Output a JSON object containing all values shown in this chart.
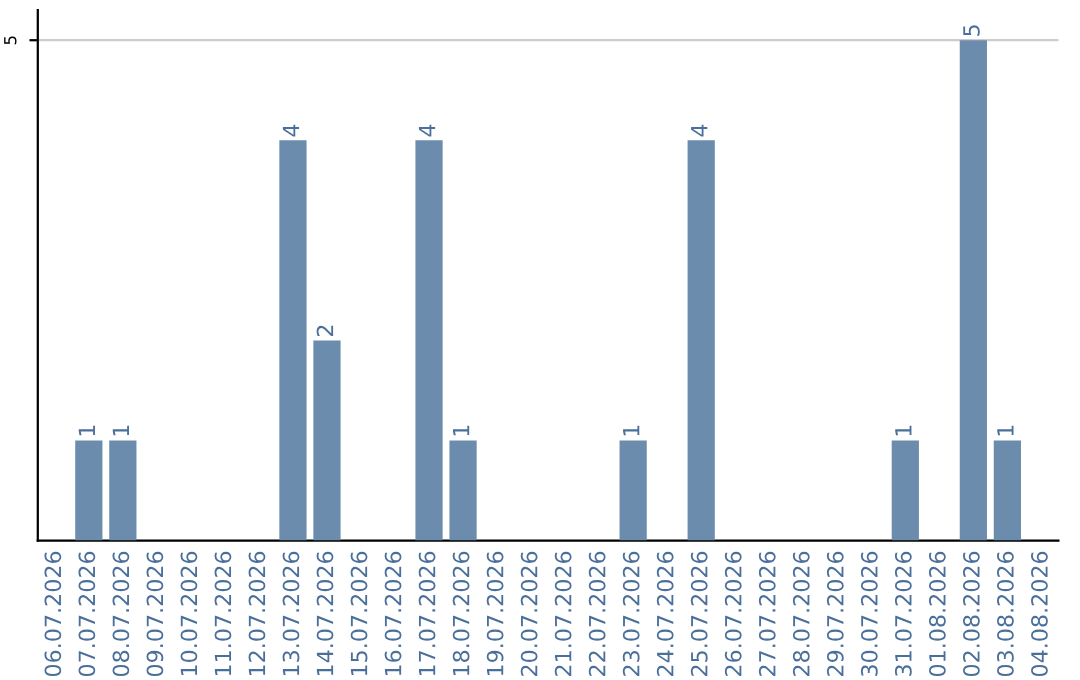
{
  "chart_data": {
    "type": "bar",
    "categories": [
      "06.07.2026",
      "07.07.2026",
      "08.07.2026",
      "09.07.2026",
      "10.07.2026",
      "11.07.2026",
      "12.07.2026",
      "13.07.2026",
      "14.07.2026",
      "15.07.2026",
      "16.07.2026",
      "17.07.2026",
      "18.07.2026",
      "19.07.2026",
      "20.07.2026",
      "21.07.2026",
      "22.07.2026",
      "23.07.2026",
      "24.07.2026",
      "25.07.2026",
      "26.07.2026",
      "27.07.2026",
      "28.07.2026",
      "29.07.2026",
      "30.07.2026",
      "31.07.2026",
      "01.08.2026",
      "02.08.2026",
      "03.08.2026",
      "04.08.2026"
    ],
    "values": [
      0,
      1,
      1,
      0,
      0,
      0,
      0,
      4,
      2,
      0,
      0,
      4,
      1,
      0,
      0,
      0,
      0,
      1,
      0,
      4,
      0,
      0,
      0,
      0,
      0,
      1,
      0,
      5,
      1,
      0
    ],
    "value_labels": [
      null,
      "1",
      "1",
      null,
      null,
      null,
      null,
      "4",
      "2",
      null,
      null,
      "4",
      "1",
      null,
      null,
      null,
      null,
      "1",
      null,
      "4",
      null,
      null,
      null,
      null,
      null,
      "1",
      null,
      "5",
      "1",
      null
    ],
    "color": "#6b8cad",
    "ylim": [
      0,
      5.3
    ],
    "yticks": [
      5
    ],
    "grid": "y"
  }
}
